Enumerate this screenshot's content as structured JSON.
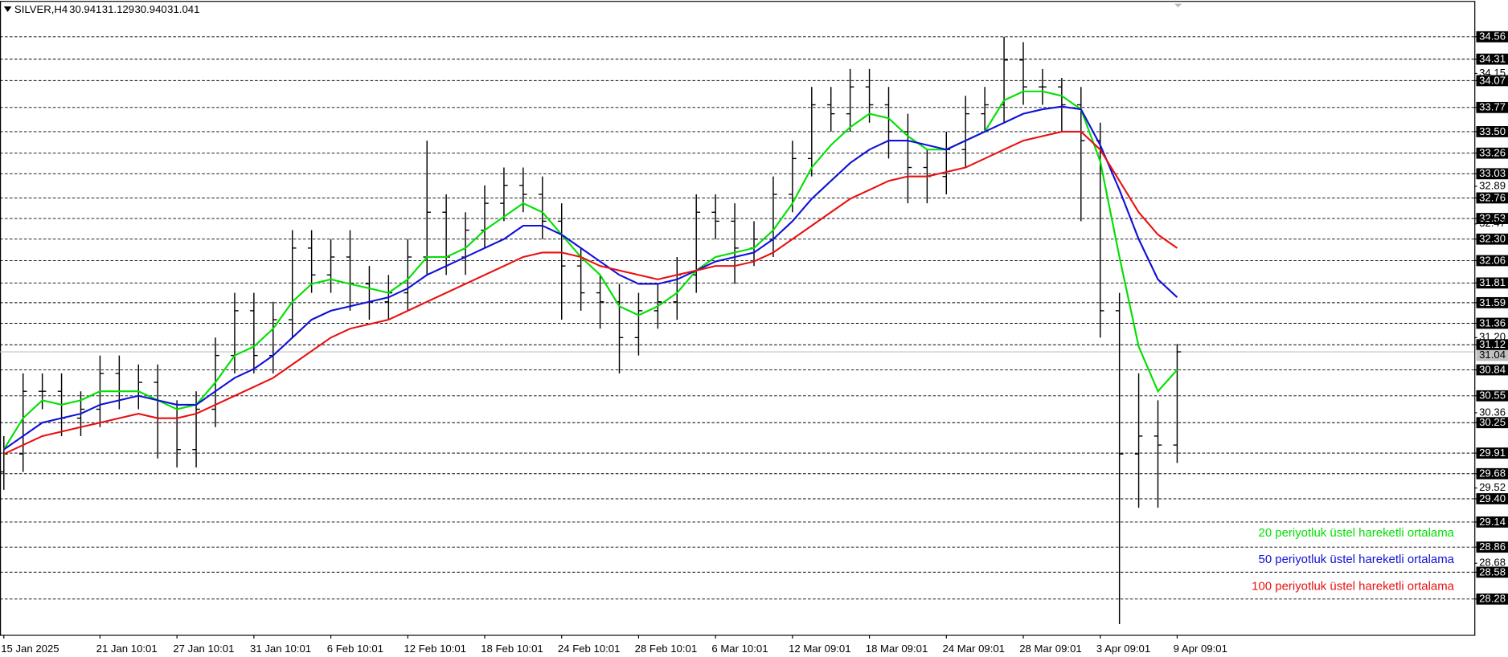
{
  "chart_data": {
    "type": "ohlc",
    "header": {
      "symbol": "SILVER,H4",
      "ohlc_text": [
        "30.941",
        "31.129",
        "30.940",
        "31.041"
      ]
    },
    "categories": [
      "15 Jan 2025",
      null,
      null,
      null,
      null,
      "21 Jan 10:01",
      null,
      null,
      null,
      "27 Jan 10:01",
      null,
      null,
      null,
      "31 Jan 10:01",
      null,
      null,
      null,
      "6 Feb 10:01",
      null,
      null,
      null,
      "12 Feb 10:01",
      null,
      null,
      null,
      "18 Feb 10:01",
      null,
      null,
      null,
      "24 Feb 10:01",
      null,
      null,
      null,
      "28 Feb 10:01",
      null,
      null,
      null,
      "6 Mar 10:01",
      null,
      null,
      null,
      "12 Mar 09:01",
      null,
      null,
      null,
      "18 Mar 09:01",
      null,
      null,
      null,
      "24 Mar 09:01",
      null,
      null,
      null,
      "28 Mar 09:01",
      null,
      null,
      null,
      "3 Apr 09:01",
      null,
      null,
      null,
      "9 Apr 09:01"
    ],
    "open": [
      29.7,
      29.9,
      30.6,
      30.6,
      30.3,
      30.4,
      30.8,
      30.6,
      30.7,
      30.3,
      29.95,
      30.4,
      31.0,
      31.5,
      31.0,
      31.4,
      32.2,
      31.9,
      32.1,
      31.8,
      31.6,
      31.7,
      32.1,
      32.6,
      32.1,
      32.4,
      32.7,
      32.9,
      32.8,
      32.5,
      32.0,
      31.7,
      31.6,
      31.2,
      31.5,
      31.6,
      31.9,
      32.6,
      32.5,
      32.2,
      32.3,
      32.8,
      33.2,
      33.8,
      33.7,
      34.0,
      33.8,
      33.5,
      33.1,
      33.0,
      33.3,
      33.7,
      33.8,
      34.3,
      34.0,
      34.0,
      33.8,
      33.4,
      31.5,
      29.9,
      30.1,
      30.0
    ],
    "high": [
      30.1,
      30.8,
      30.8,
      30.8,
      30.6,
      31.0,
      31.0,
      30.9,
      30.9,
      30.5,
      30.6,
      31.2,
      31.7,
      31.7,
      31.6,
      32.4,
      32.4,
      32.3,
      32.4,
      32.0,
      31.9,
      32.3,
      33.4,
      32.8,
      32.6,
      32.9,
      33.1,
      33.1,
      33.0,
      32.7,
      32.2,
      31.9,
      31.8,
      31.7,
      31.8,
      32.1,
      32.8,
      32.8,
      32.7,
      32.5,
      33.0,
      33.4,
      34.0,
      34.0,
      34.2,
      34.2,
      34.0,
      33.7,
      33.3,
      33.5,
      33.9,
      34.0,
      34.56,
      34.5,
      34.2,
      34.1,
      34.0,
      33.6,
      31.7,
      30.8,
      30.5,
      31.129
    ],
    "low": [
      29.5,
      29.7,
      30.4,
      30.1,
      30.1,
      30.2,
      30.4,
      30.4,
      29.85,
      29.75,
      29.75,
      30.2,
      30.8,
      30.8,
      30.8,
      31.2,
      31.7,
      31.7,
      31.5,
      31.4,
      31.4,
      31.5,
      31.9,
      31.9,
      31.9,
      32.2,
      32.5,
      32.6,
      32.3,
      31.4,
      31.5,
      31.3,
      30.8,
      31.0,
      31.3,
      31.4,
      31.7,
      32.3,
      31.8,
      32.0,
      32.1,
      32.6,
      33.0,
      33.5,
      33.5,
      33.6,
      33.2,
      32.7,
      32.7,
      32.8,
      33.1,
      33.5,
      33.6,
      33.8,
      33.8,
      33.5,
      32.5,
      31.2,
      28.0,
      29.3,
      29.3,
      29.8
    ],
    "close": [
      29.9,
      30.6,
      30.6,
      30.3,
      30.4,
      30.8,
      30.6,
      30.7,
      30.3,
      29.95,
      30.4,
      31.0,
      31.5,
      31.0,
      31.4,
      32.2,
      31.9,
      32.1,
      31.8,
      31.6,
      31.7,
      32.1,
      32.6,
      32.1,
      32.4,
      32.7,
      32.9,
      32.8,
      32.5,
      32.0,
      31.7,
      31.6,
      31.2,
      31.5,
      31.6,
      31.9,
      32.6,
      32.5,
      32.2,
      32.3,
      32.8,
      33.2,
      33.8,
      33.7,
      34.0,
      33.8,
      33.5,
      33.1,
      33.0,
      33.3,
      33.7,
      33.8,
      34.3,
      34.0,
      34.0,
      33.8,
      33.4,
      31.5,
      29.9,
      30.1,
      30.0,
      31.041
    ],
    "bar_color": "#000000",
    "series": [
      {
        "name": "20 periyotluk üstel hareketli ortalama",
        "color": "#00e000",
        "values": [
          29.95,
          30.3,
          30.5,
          30.45,
          30.5,
          30.6,
          30.6,
          30.6,
          30.5,
          30.4,
          30.45,
          30.7,
          31.0,
          31.1,
          31.3,
          31.6,
          31.8,
          31.85,
          31.8,
          31.75,
          31.7,
          31.85,
          32.1,
          32.1,
          32.2,
          32.4,
          32.55,
          32.7,
          32.6,
          32.35,
          32.1,
          31.9,
          31.55,
          31.45,
          31.55,
          31.7,
          31.95,
          32.1,
          32.15,
          32.2,
          32.4,
          32.7,
          33.1,
          33.35,
          33.55,
          33.7,
          33.65,
          33.45,
          33.3,
          33.3,
          33.4,
          33.5,
          33.85,
          33.95,
          33.95,
          33.9,
          33.75,
          33.17,
          32.1,
          31.1,
          30.6,
          30.84
        ]
      },
      {
        "name": "50 periyotluk üstel hareketli ortalama",
        "color": "#1010d8",
        "values": [
          29.95,
          30.1,
          30.25,
          30.3,
          30.35,
          30.45,
          30.5,
          30.55,
          30.5,
          30.45,
          30.45,
          30.6,
          30.75,
          30.85,
          31.0,
          31.2,
          31.4,
          31.5,
          31.55,
          31.6,
          31.65,
          31.75,
          31.9,
          32.0,
          32.1,
          32.2,
          32.3,
          32.45,
          32.45,
          32.35,
          32.2,
          32.05,
          31.9,
          31.8,
          31.8,
          31.85,
          31.95,
          32.05,
          32.1,
          32.15,
          32.3,
          32.5,
          32.75,
          32.95,
          33.15,
          33.3,
          33.4,
          33.4,
          33.35,
          33.3,
          33.4,
          33.5,
          33.6,
          33.7,
          33.75,
          33.78,
          33.75,
          33.35,
          32.85,
          32.3,
          31.85,
          31.65
        ]
      },
      {
        "name": "100 periyotluk üstel hareketli ortalama",
        "color": "#e81010",
        "values": [
          29.9,
          30.0,
          30.1,
          30.15,
          30.2,
          30.25,
          30.3,
          30.35,
          30.3,
          30.3,
          30.35,
          30.45,
          30.55,
          30.65,
          30.75,
          30.9,
          31.05,
          31.2,
          31.3,
          31.35,
          31.4,
          31.5,
          31.6,
          31.7,
          31.8,
          31.9,
          32.0,
          32.1,
          32.15,
          32.15,
          32.1,
          32.0,
          31.95,
          31.9,
          31.85,
          31.9,
          31.95,
          32.0,
          32.0,
          32.05,
          32.15,
          32.3,
          32.45,
          32.6,
          32.75,
          32.85,
          32.95,
          33.0,
          33.0,
          33.05,
          33.1,
          33.2,
          33.3,
          33.4,
          33.45,
          33.5,
          33.5,
          33.3,
          32.95,
          32.6,
          32.35,
          32.2
        ]
      }
    ],
    "ylim": [
      27.88,
      34.95
    ],
    "yticks": [
      34.56,
      34.31,
      34.07,
      33.77,
      {
        "value": 33.5,
        "label": "33.50"
      },
      33.26,
      33.03,
      32.76,
      32.53,
      {
        "value": 32.3,
        "label": "32.30"
      },
      32.06,
      31.81,
      31.59,
      31.36,
      31.12,
      30.84,
      30.55,
      30.25,
      29.91,
      29.68,
      {
        "value": 29.4,
        "label": "29.40"
      },
      29.14,
      28.86,
      28.58,
      28.28
    ],
    "minor_yticks": [
      34.15,
      32.89,
      32.47,
      {
        "value": 31.2,
        "label": "31.20"
      },
      30.36,
      29.52,
      28.68
    ],
    "current_price": {
      "value": 31.041,
      "label": "31.04"
    },
    "grid": true
  }
}
